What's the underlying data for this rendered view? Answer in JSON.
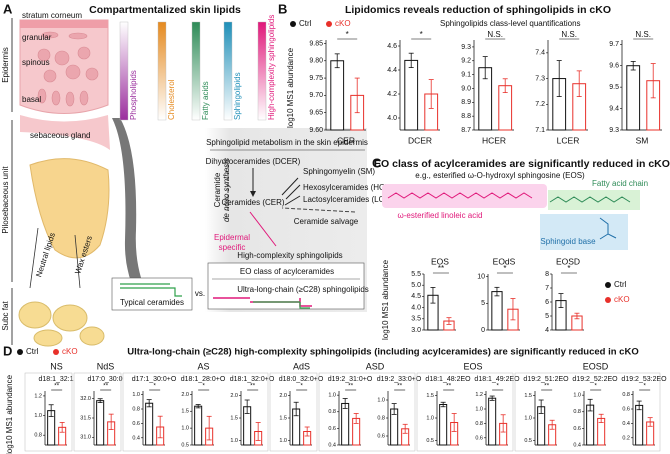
{
  "panel_a": {
    "label": "A",
    "title": "Compartmentalized skin lipids",
    "regions": [
      "Epidermis",
      "Pilosebaceous unit",
      "Subc fat"
    ],
    "layers": [
      "stratum corneum",
      "granular",
      "spinous",
      "basal"
    ],
    "gland": "sebaceous gland",
    "gland_lipids": [
      "Neutral lipids",
      "Wax esters"
    ],
    "lipids": [
      {
        "name": "Phospholipids",
        "color": "#9b2f9e",
        "fade": "top"
      },
      {
        "name": "Cholesterol",
        "color": "#e58a1f",
        "fade": "bottom"
      },
      {
        "name": "Fatty acids",
        "color": "#2e8b57",
        "fade": "bottom"
      },
      {
        "name": "Sphingolipids",
        "color": "#1f8fb8",
        "fade": "bottom"
      },
      {
        "name": "High-complexity sphingolipids",
        "color": "#e0187a",
        "fade": "bottom"
      }
    ],
    "metabolism": {
      "title": "Sphingolipid metabolism in the skin epidermis",
      "dcer": "Dihydroceramides (DCER)",
      "cer": "Ceramides (CER)",
      "sm": "Sphingomyelin (SM)",
      "hcer": "Hexosylceramides (HCER)",
      "lcer": "Lactosylceramides (LCER)",
      "de_novo": [
        "Ceramide",
        "de novo synthesis"
      ],
      "salvage": "Ceramide salvage",
      "epidermal": [
        "Epidermal",
        "specific"
      ],
      "high_complexity": "High-complexity sphingolipids",
      "eo": "EO class of acylceramides",
      "ulc": "Ultra-long-chain (≥C28) sphingolipids",
      "typical": "Typical ceramides",
      "vs": "vs."
    }
  },
  "panel_b": {
    "label": "B",
    "title": "Lipidomics reveals reduction of sphingolipids in cKO",
    "subtitle": "Sphingolipids class-level quantifications",
    "y_label": "log10 MS1 abundance",
    "legend": [
      {
        "name": "Ctrl",
        "color": "#111111"
      },
      {
        "name": "cKO",
        "color": "#e8302a"
      }
    ],
    "charts": [
      {
        "name": "CER",
        "ylim": [
          9.6,
          9.86
        ],
        "yticks": [
          {
            "value": 9.6,
            "label": "9.60"
          },
          9.65,
          {
            "value": 9.7,
            "label": "9.70"
          },
          9.75,
          {
            "value": 9.8,
            "label": "9.80"
          },
          9.85
        ],
        "values": [
          9.8,
          9.7
        ],
        "errors": [
          0.02,
          0.05
        ],
        "significance": "*"
      },
      {
        "name": "DCER",
        "ylim": [
          3.9,
          4.65
        ],
        "yticks": [
          {
            "value": 4,
            "label": "4.0"
          },
          4.2,
          4.4,
          4.6
        ],
        "values": [
          4.48,
          4.2
        ],
        "errors": [
          0.06,
          0.12
        ],
        "significance": "*"
      },
      {
        "name": "HCER",
        "ylim": [
          8.7,
          9.35
        ],
        "yticks": [
          8.7,
          8.8,
          8.9,
          {
            "value": 9,
            "label": "9.0"
          },
          9.1,
          9.2,
          9.3
        ],
        "values": [
          9.15,
          9.02
        ],
        "errors": [
          0.08,
          0.05
        ],
        "significance": "N.S."
      },
      {
        "name": "LCER",
        "ylim": [
          7.1,
          7.45
        ],
        "yticks": [
          7.1,
          7.2,
          7.3,
          7.4
        ],
        "values": [
          7.3,
          7.28
        ],
        "errors": [
          0.07,
          0.05
        ],
        "significance": "N.S."
      },
      {
        "name": "SM",
        "ylim": [
          9.3,
          9.72
        ],
        "yticks": [
          9.3,
          9.4,
          9.5,
          9.6,
          9.7
        ],
        "values": [
          9.6,
          9.53
        ],
        "errors": [
          0.02,
          0.08
        ],
        "significance": "N.S."
      }
    ]
  },
  "panel_c": {
    "label": "C",
    "title": "EO class of acylceramides are significantly reduced in cKO",
    "example": "e.g., esterified ω-O-hydroxyl sphingosine (EOS)",
    "linoleic": "ω-esterified linoleic acid",
    "fatty_acid": "Fatty acid chain",
    "sphingoid": "Sphingoid base",
    "y_label": "log10 MS1 abundance",
    "legend": [
      {
        "name": "Ctrl",
        "color": "#111111"
      },
      {
        "name": "cKO",
        "color": "#e8302a"
      }
    ],
    "charts": [
      {
        "name": "EOS",
        "ylim": [
          3,
          5.5
        ],
        "yticks": [
          {
            "value": 3,
            "label": "3.0"
          },
          3.5,
          {
            "value": 4,
            "label": "4.0"
          },
          4.5,
          {
            "value": 5,
            "label": "5.0"
          },
          5.5
        ],
        "values": [
          4.55,
          3.4
        ],
        "errors": [
          0.35,
          0.15
        ],
        "significance": "**"
      },
      {
        "name": "EOdS",
        "ylim": [
          0,
          10.5
        ],
        "yticks": [
          0,
          5,
          10
        ],
        "values": [
          7.2,
          3.9
        ],
        "errors": [
          0.8,
          2
        ],
        "significance": "*"
      },
      {
        "name": "EOSD",
        "ylim": [
          4,
          8
        ],
        "yticks": [
          4,
          5,
          6,
          7,
          8
        ],
        "values": [
          6.1,
          5
        ],
        "errors": [
          0.5,
          0.2
        ],
        "significance": "*"
      }
    ]
  },
  "panel_d": {
    "label": "D",
    "title": "Ultra-long-chain (≥C28) high-complexity sphingolipids (including acylceramides) are significantly reduced in cKO",
    "y_label": "log10 MS1 abundance",
    "legend": [
      {
        "name": "Ctrl",
        "color": "#111111"
      },
      {
        "name": "cKO",
        "color": "#e8302a"
      }
    ],
    "groups": [
      {
        "name": "NS",
        "charts": [
          {
            "name": "d18:1_32:1",
            "ylim": [
              0.7,
              1.25
            ],
            "yticks": [
              0.8,
              {
                "value": 1,
                "label": "1.0"
              },
              1.2
            ],
            "values": [
              1.05,
              0.88
            ],
            "errors": [
              0.06,
              0.05
            ],
            "significance": "**"
          }
        ]
      },
      {
        "name": "NdS",
        "charts": [
          {
            "name": "d17:0_30:0",
            "ylim": [
              30.8,
              32.2
            ],
            "yticks": [
              {
                "value": 31,
                "label": "31.0"
              },
              31.5,
              {
                "value": 32,
                "label": "32.0"
              }
            ],
            "values": [
              31.95,
              31.4
            ],
            "errors": [
              0.05,
              0.2
            ],
            "significance": "**"
          }
        ]
      },
      {
        "name": "AS",
        "charts": [
          {
            "name": "d17:1_30:0+O",
            "ylim": [
              0.3,
              1.05
            ],
            "yticks": [
              0.4,
              0.6,
              0.8,
              {
                "value": 1,
                "label": "1.0"
              }
            ],
            "values": [
              0.88,
              0.55
            ],
            "errors": [
              0.05,
              0.15
            ],
            "significance": "*"
          },
          {
            "name": "d18:1_28:0+O",
            "ylim": [
              0.5,
              2.1
            ],
            "yticks": [
              0.5,
              {
                "value": 1,
                "label": "1.0"
              },
              1.5,
              {
                "value": 2,
                "label": "2.0"
              }
            ],
            "values": [
              1.65,
              1
            ],
            "errors": [
              0.05,
              0.35
            ],
            "significance": "*"
          },
          {
            "name": "d18:1_32:0+O",
            "ylim": [
              0.9,
              2.1
            ],
            "yticks": [
              {
                "value": 1,
                "label": "1.0"
              },
              1.5,
              {
                "value": 2,
                "label": "2.0"
              }
            ],
            "values": [
              1.75,
              1.2
            ],
            "errors": [
              0.15,
              0.2
            ],
            "significance": "**"
          }
        ]
      },
      {
        "name": "AdS",
        "charts": [
          {
            "name": "d18:0_32:0+O",
            "ylim": [
              0.9,
              2.1
            ],
            "yticks": [
              {
                "value": 1,
                "label": "1.0"
              },
              1.5,
              {
                "value": 2,
                "label": "2.0"
              }
            ],
            "values": [
              1.7,
              1.2
            ],
            "errors": [
              0.15,
              0.1
            ],
            "significance": "*"
          }
        ]
      },
      {
        "name": "ASD",
        "charts": [
          {
            "name": "d19:2_31:0+O",
            "ylim": [
              0.4,
              1.05
            ],
            "yticks": [
              0.4,
              0.6,
              0.8,
              {
                "value": 1,
                "label": "1.0"
              }
            ],
            "values": [
              0.9,
              0.72
            ],
            "errors": [
              0.06,
              0.06
            ],
            "significance": "**"
          },
          {
            "name": "d19:2_33:0+O",
            "ylim": [
              0.5,
              1.1
            ],
            "yticks": [
              0.6,
              0.8,
              {
                "value": 1,
                "label": "1.0"
              }
            ],
            "values": [
              0.9,
              0.68
            ],
            "errors": [
              0.06,
              0.05
            ],
            "significance": "**"
          }
        ]
      },
      {
        "name": "EOS",
        "charts": [
          {
            "name": "d18:1_48:2EO",
            "ylim": [
              0.4,
              1.6
            ],
            "yticks": [
              0.5,
              {
                "value": 1,
                "label": "1.0"
              },
              1.5
            ],
            "values": [
              1.3,
              0.9
            ],
            "errors": [
              0.05,
              0.2
            ],
            "significance": "**"
          },
          {
            "name": "d18:1_49:2EO",
            "ylim": [
              0.5,
              1.25
            ],
            "yticks": [
              0.6,
              0.8,
              {
                "value": 1,
                "label": "1.0"
              },
              1.2
            ],
            "values": [
              1.15,
              0.8
            ],
            "errors": [
              0.03,
              0.12
            ],
            "significance": "*"
          }
        ]
      },
      {
        "name": "EOSD",
        "charts": [
          {
            "name": "d19:2_51:2EO",
            "ylim": [
              0.4,
              1.6
            ],
            "yticks": [
              0.5,
              {
                "value": 1,
                "label": "1.0"
              },
              1.5
            ],
            "values": [
              1.25,
              0.85
            ],
            "errors": [
              0.15,
              0.1
            ],
            "significance": "**"
          },
          {
            "name": "d19:2_52:2EO",
            "ylim": [
              0.4,
              1.05
            ],
            "yticks": [
              0.4,
              0.6,
              0.8,
              {
                "value": 1,
                "label": "1.0"
              }
            ],
            "values": [
              0.88,
              0.72
            ],
            "errors": [
              0.07,
              0.05
            ],
            "significance": "*"
          },
          {
            "name": "d19:2_53:2EO",
            "ylim": [
              0.1,
              0.85
            ],
            "yticks": [
              0.2,
              0.4,
              0.6,
              0.8
            ],
            "values": [
              0.65,
              0.42
            ],
            "errors": [
              0.06,
              0.06
            ],
            "significance": "*"
          }
        ]
      }
    ]
  }
}
